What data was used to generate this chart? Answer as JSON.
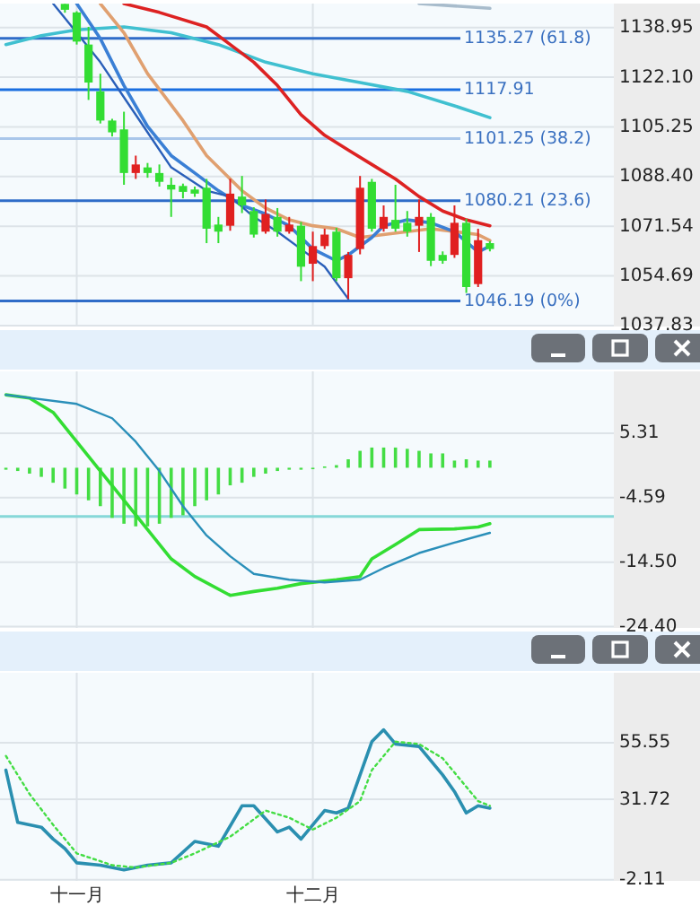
{
  "chart_data": [
    {
      "type": "candlestick",
      "categories": [
        null,
        null,
        null,
        null,
        null,
        null,
        null,
        null,
        null,
        null,
        null,
        null,
        null,
        null,
        null,
        null,
        null,
        null,
        null,
        null,
        null,
        null,
        null,
        null,
        null,
        null,
        null,
        null,
        null,
        null,
        null,
        null,
        null,
        null,
        null,
        null,
        null,
        null,
        null,
        null,
        null,
        null,
        null,
        null,
        null,
        null,
        null,
        null,
        null,
        null,
        null,
        null
      ],
      "ohlc": [
        null,
        null,
        null,
        null,
        null,
        [
          1147,
          1147,
          1144,
          1145
        ],
        [
          1144.1,
          1144.5,
          1133.2,
          1134.2
        ],
        [
          1133.2,
          1139.2,
          1114.4,
          1120.3
        ],
        [
          1117.3,
          1123.3,
          1106.4,
          1107.4
        ],
        [
          1107.4,
          1108,
          1102,
          1103.4
        ],
        [
          1104.4,
          1110.4,
          1085.6,
          1089.6
        ],
        [
          1089.6,
          1095.5,
          1087.6,
          1092.5
        ],
        [
          1091.5,
          1093,
          1088,
          1089.6
        ],
        [
          1089.6,
          1092.5,
          1085,
          1086.6
        ],
        [
          1085.6,
          1088,
          1074.7,
          1084
        ],
        [
          1085.2,
          1086,
          1081,
          1083.2
        ],
        [
          1084,
          1085,
          1081.5,
          1082.6
        ],
        [
          1084.6,
          1087.6,
          1065.8,
          1070.7
        ],
        [
          1072.1,
          1074.7,
          1065.8,
          1069.7
        ],
        [
          1071.7,
          1087.6,
          1070,
          1082.6
        ],
        [
          1081.6,
          1088.6,
          1076,
          1078.6
        ],
        [
          1076.7,
          1078,
          1067.7,
          1068.7
        ],
        [
          1069.7,
          1080.6,
          1069,
          1075.7
        ],
        [
          1074.7,
          1077.7,
          1068,
          1069.7
        ],
        [
          1069.7,
          1074.7,
          1069,
          1072.1
        ],
        [
          1071.7,
          1073,
          1052.9,
          1057.8
        ],
        [
          1058.8,
          1069.7,
          1052.9,
          1064.8
        ],
        [
          1064.8,
          1070.7,
          1063.8,
          1068.7
        ],
        [
          1069.7,
          1071,
          1052.9,
          1053.9
        ],
        [
          1053.9,
          1062.8,
          1046.9,
          1061.8
        ],
        [
          1063.8,
          1088.6,
          1062,
          1084.6
        ],
        [
          1086.6,
          1087.6,
          1069.7,
          1070.7
        ],
        [
          1070.7,
          1078.6,
          1069.7,
          1074.7
        ],
        [
          1073.7,
          1085.6,
          1069.7,
          1070.7
        ],
        [
          1072.7,
          1076.7,
          1068,
          1069.7
        ],
        [
          1071.7,
          1080.6,
          1062.8,
          1074.7
        ],
        [
          1074.7,
          1076,
          1058,
          1059.8
        ],
        [
          1061.8,
          1063,
          1058.8,
          1059.8
        ],
        [
          1061.8,
          1078.6,
          1060.8,
          1072.7
        ],
        [
          1072.7,
          1074,
          1048.9,
          1050.9
        ],
        [
          1051.9,
          1070.7,
          1050.9,
          1066.8
        ],
        [
          1065.8,
          1066.5,
          1063,
          1063.8
        ],
        null,
        null,
        null,
        null,
        null,
        null,
        null,
        null,
        null,
        null
      ],
      "series": [
        {
          "type": "line",
          "color": "#40c0d0",
          "values": [
            1133.2,
            null,
            null,
            1136.2,
            null,
            null,
            1138.2,
            null,
            null,
            null,
            1139.2,
            null,
            null,
            null,
            1137.2,
            null,
            null,
            null,
            1133.2,
            null,
            null,
            null,
            1127.2,
            null,
            null,
            null,
            1123.3,
            null,
            null,
            null,
            1120.3,
            null,
            null,
            null,
            1117.3,
            null,
            null,
            null,
            1112.4,
            null,
            null,
            1108.4,
            null,
            null,
            null,
            null,
            null,
            null,
            null,
            null,
            null,
            null
          ]
        },
        {
          "type": "line",
          "color": "#a8bccc",
          "values": [
            null,
            null,
            null,
            null,
            null,
            null,
            null,
            null,
            null,
            null,
            null,
            null,
            null,
            null,
            null,
            null,
            null,
            null,
            null,
            null,
            null,
            null,
            null,
            null,
            null,
            null,
            null,
            null,
            null,
            null,
            null,
            null,
            null,
            null,
            null,
            1147.1,
            null,
            null,
            null,
            null,
            null,
            1145.5,
            null,
            null,
            null,
            null,
            null,
            null,
            null,
            null,
            null,
            null
          ]
        },
        {
          "type": "line",
          "color": "#dd2222",
          "values": [
            null,
            null,
            null,
            null,
            null,
            null,
            null,
            null,
            null,
            null,
            1147.1,
            null,
            null,
            1144.1,
            null,
            null,
            null,
            1139.2,
            null,
            1133.2,
            null,
            1127.2,
            null,
            1119.3,
            null,
            1109.4,
            null,
            1102.4,
            null,
            1097.4,
            null,
            1092.5,
            null,
            1087.6,
            null,
            1081.6,
            null,
            1076.7,
            null,
            1073.7,
            null,
            1071.7,
            null,
            null,
            null,
            null,
            null,
            null,
            null,
            null,
            null,
            null
          ]
        },
        {
          "type": "line",
          "color": "#e0a070",
          "values": [
            null,
            null,
            null,
            null,
            null,
            null,
            null,
            null,
            1147.1,
            null,
            1137.2,
            null,
            1123.3,
            null,
            null,
            1107.4,
            null,
            1095.5,
            null,
            1087.6,
            1083.6,
            null,
            1077.7,
            null,
            1073.7,
            null,
            1071.7,
            null,
            1070.7,
            null,
            1067.7,
            null,
            1068.7,
            null,
            1069.7,
            null,
            1070.7,
            null,
            1069.7,
            null,
            1068.7,
            1066.7,
            null,
            null,
            null,
            null,
            null,
            null,
            null,
            null,
            null,
            null
          ]
        },
        {
          "type": "line",
          "color": "#3a7fd5",
          "values": [
            null,
            null,
            null,
            null,
            null,
            null,
            1147.1,
            null,
            1135.2,
            null,
            1119.3,
            null,
            1105.4,
            null,
            1095.5,
            null,
            1089.6,
            null,
            1083.6,
            null,
            1078.6,
            null,
            1075.7,
            null,
            1071.7,
            null,
            1063.8,
            null,
            1059.8,
            1061.8,
            null,
            1067.7,
            1071.7,
            null,
            1073.7,
            null,
            1072.7,
            null,
            1069.7,
            null,
            1062.8,
            1064.8,
            null,
            null,
            null,
            null,
            null,
            null,
            null,
            null,
            null,
            null
          ]
        },
        {
          "type": "line",
          "color": "#2a5fb9",
          "values": [
            null,
            null,
            null,
            null,
            1147.1,
            null,
            1137.2,
            null,
            1127.2,
            null,
            1115.3,
            null,
            1103.4,
            null,
            1091.5,
            null,
            null,
            1083.6,
            null,
            1081.6,
            null,
            1074.7,
            null,
            1069.7,
            null,
            1063.8,
            null,
            1057.8,
            null,
            1046.9,
            null,
            null,
            null,
            null,
            null,
            null,
            null,
            null,
            null,
            null,
            null,
            null,
            null,
            null,
            null,
            null,
            null,
            null,
            null,
            null,
            null,
            null
          ]
        }
      ],
      "ref_lines": [
        {
          "axis": "y",
          "value": 1135.27,
          "label": "1135.27 (61.8)",
          "color": "#2f6cc8"
        },
        {
          "axis": "y",
          "value": 1117.91,
          "label": "1117.91",
          "color": "#1a6ee0"
        },
        {
          "axis": "y",
          "value": 1101.25,
          "label": "1101.25 (38.2)",
          "color": "#a9c6ea"
        },
        {
          "axis": "y",
          "value": 1080.21,
          "label": "1080.21 (23.6)",
          "color": "#2f6cc8"
        },
        {
          "axis": "y",
          "value": 1046.19,
          "label": "1046.19 (0%)",
          "color": "#2f6cc8"
        }
      ],
      "ylim": [
        1037.5,
        1147.1
      ],
      "yticks": [
        1138.95,
        {
          "value": 1122.1,
          "label": "1122.10"
        },
        1105.25,
        {
          "value": 1088.4,
          "label": "1088.40"
        },
        1071.54,
        1054.69,
        1037.83
      ],
      "grid": true,
      "tick_labels": "y"
    },
    {
      "type": "bar",
      "categories": [
        null,
        null,
        null,
        null,
        null,
        null,
        null,
        null,
        null,
        null,
        null,
        null,
        null,
        null,
        null,
        null,
        null,
        null,
        null,
        null,
        null,
        null,
        null,
        null,
        null,
        null,
        null,
        null,
        null,
        null,
        null,
        null,
        null,
        null,
        null,
        null,
        null,
        null,
        null,
        null,
        null,
        null,
        null,
        null,
        null,
        null,
        null,
        null,
        null,
        null,
        null,
        null
      ],
      "series": [
        {
          "type": "bar",
          "color": "#44dd44",
          "values": [
            -0.3,
            -0.5,
            -0.9,
            -1.4,
            -2.3,
            -3.2,
            -4.1,
            -5.0,
            -5.9,
            -7.7,
            -8.6,
            -9.0,
            -9.0,
            -8.6,
            -7.7,
            -7.3,
            -5.9,
            -5.0,
            -4.1,
            -2.7,
            -2.3,
            -1.4,
            -0.9,
            -0.5,
            -0.3,
            -0.3,
            -0.1,
            0.2,
            0.4,
            1.3,
            2.6,
            3.1,
            3.1,
            3.1,
            2.9,
            2.6,
            2.2,
            2.2,
            1.1,
            1.3,
            1.1,
            1.1,
            null,
            null,
            null,
            null,
            null,
            null,
            null,
            null,
            null,
            null
          ]
        },
        {
          "type": "line",
          "color": "#33dd33",
          "values": [
            11.2,
            null,
            10.7,
            null,
            8.5,
            null,
            4.0,
            null,
            -0.5,
            null,
            -5.0,
            null,
            -9.5,
            null,
            -14.0,
            null,
            -16.7,
            null,
            null,
            -19.6,
            null,
            -19.0,
            null,
            -18.5,
            null,
            -17.8,
            null,
            null,
            -17.2,
            null,
            -16.7,
            -14.0,
            null,
            -11.8,
            null,
            -9.5,
            null,
            null,
            -9.4,
            null,
            -9.1,
            -8.6,
            null,
            null,
            null,
            null,
            null,
            null,
            null,
            null,
            null,
            null
          ]
        },
        {
          "type": "line",
          "color": "#2a8fb9",
          "values": [
            11.2,
            null,
            null,
            null,
            null,
            null,
            9.8,
            null,
            null,
            7.6,
            null,
            4.0,
            null,
            -0.5,
            null,
            -5.9,
            null,
            -10.4,
            null,
            -13.6,
            null,
            -16.3,
            null,
            null,
            -17.2,
            null,
            null,
            -17.6,
            null,
            null,
            -17.2,
            null,
            -15.4,
            null,
            null,
            -13.1,
            null,
            null,
            -11.5,
            null,
            null,
            -10.0,
            null,
            null,
            null,
            null,
            null,
            null,
            null,
            null,
            null,
            null
          ]
        }
      ],
      "ref_lines": [
        {
          "axis": "y",
          "value": -7.5,
          "color": "#86d8d8"
        }
      ],
      "ylim": [
        -24.6,
        14.8
      ],
      "yticks": [
        5.31,
        -4.59,
        {
          "value": -14.5,
          "label": "-14.50"
        },
        {
          "value": -24.4,
          "label": "-24.40"
        }
      ],
      "grid": true,
      "tick_labels": "y"
    },
    {
      "type": "line",
      "categories": [
        null,
        null,
        null,
        null,
        null,
        null,
        "十一月",
        null,
        null,
        null,
        null,
        null,
        null,
        null,
        null,
        null,
        null,
        null,
        null,
        null,
        null,
        null,
        null,
        null,
        null,
        null,
        "十二月",
        null,
        null,
        null,
        null,
        null,
        null,
        null,
        null,
        null,
        null,
        null,
        null,
        null,
        null,
        null,
        null,
        null,
        null,
        null,
        null,
        null,
        null,
        null,
        null,
        null
      ],
      "series": [
        {
          "color": "#2a8fb0",
          "values": [
            44,
            22,
            null,
            20,
            15,
            11,
            5,
            null,
            4,
            null,
            2,
            null,
            4,
            null,
            5,
            null,
            14,
            null,
            12,
            null,
            29,
            29,
            null,
            18,
            20,
            15,
            null,
            27,
            26,
            28,
            null,
            56,
            61,
            55,
            null,
            54,
            null,
            42,
            35,
            26,
            29,
            28,
            null,
            null,
            null,
            null,
            null,
            null,
            null,
            null,
            null,
            null
          ]
        },
        {
          "color": "#44dd44",
          "line_style": "dotted",
          "values": [
            50,
            null,
            34,
            null,
            21,
            null,
            9,
            null,
            null,
            4,
            null,
            3,
            null,
            null,
            5,
            null,
            9,
            null,
            null,
            16,
            null,
            null,
            27,
            null,
            24,
            null,
            19,
            null,
            24,
            null,
            31,
            44,
            null,
            56,
            null,
            55,
            null,
            49,
            null,
            37,
            31,
            29,
            null,
            null,
            null,
            null,
            null,
            null,
            null,
            null,
            null,
            null
          ]
        }
      ],
      "ylim": [
        -2.6,
        85
      ],
      "yticks": [
        55.55,
        31.72,
        -2.11
      ],
      "grid": true
    }
  ]
}
